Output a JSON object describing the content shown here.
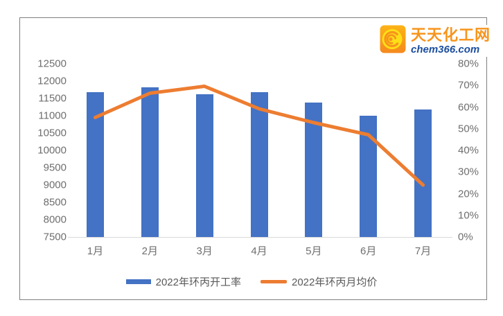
{
  "logo": {
    "name": "天天化工网",
    "domain": "chem366.com",
    "icon": "swirl-logo-icon",
    "brand_orange": "#F7941D",
    "brand_blue": "#1B4E9E"
  },
  "chart_data": {
    "type": "bar",
    "subtype": "combo bar+line, dual axis",
    "title": "",
    "categories": [
      "1月",
      "2月",
      "3月",
      "4月",
      "5月",
      "6月",
      "7月"
    ],
    "series": [
      {
        "name": "2022年环丙开工率",
        "type": "bar",
        "axis": "right",
        "color": "#4472C4",
        "values": [
          67,
          69,
          66,
          67,
          62,
          56,
          59
        ],
        "unit": "%"
      },
      {
        "name": "2022年环丙月均价",
        "type": "line",
        "axis": "left",
        "color": "#ED7D31",
        "values": [
          10950,
          11650,
          11850,
          11200,
          10800,
          10450,
          9000
        ]
      }
    ],
    "left_axis": {
      "min": 7500,
      "max": 12500,
      "step": 500,
      "tick_labels": [
        "12500",
        "12000",
        "11500",
        "11000",
        "10500",
        "10000",
        "9500",
        "9000",
        "8500",
        "8000",
        "7500"
      ]
    },
    "right_axis": {
      "min": 0,
      "max": 80,
      "step": 10,
      "tick_labels": [
        "80%",
        "70%",
        "60%",
        "50%",
        "40%",
        "30%",
        "20%",
        "10%",
        "0%"
      ]
    },
    "grid": false,
    "legend_position": "bottom"
  }
}
